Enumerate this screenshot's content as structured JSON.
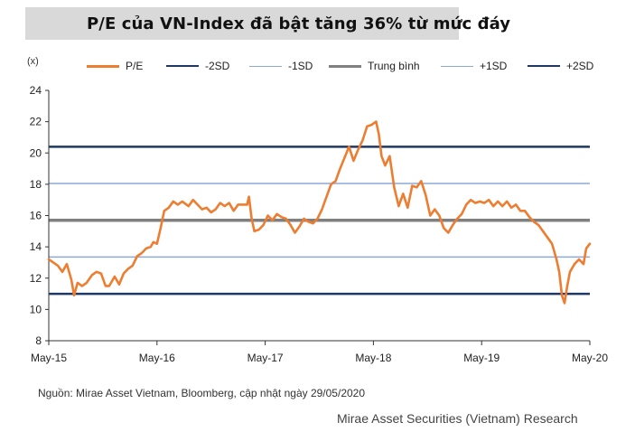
{
  "header": {
    "title": "P/E của VN-Index đã bật tăng 36% từ mức đáy",
    "unit": "(x)"
  },
  "legend": [
    {
      "label": "P/E",
      "color": "#ed7d31",
      "width": 3
    },
    {
      "label": "-2SD",
      "color": "#1f3864",
      "width": 2.5
    },
    {
      "label": "-1SD",
      "color": "#8ea9db",
      "width": 1.5
    },
    {
      "label": "Trung bình",
      "color": "#808080",
      "width": 3.5
    },
    {
      "label": "+1SD",
      "color": "#8ea9db",
      "width": 1.5
    },
    {
      "label": "+2SD",
      "color": "#1f3864",
      "width": 2.5
    }
  ],
  "footer": {
    "source": "Nguồn:  Mirae Asset Vietnam, Bloomberg, cập nhật ngày 29/05/2020",
    "brand": "Mirae Asset Securities (Vietnam) Research"
  },
  "chart_data": {
    "type": "line",
    "title": "P/E của VN-Index đã bật tăng 36% từ mức đáy",
    "ylabel": "(x)",
    "xlabel": "",
    "ylim": [
      8,
      24
    ],
    "y_ticks": [
      8,
      10,
      12,
      14,
      16,
      18,
      20,
      22,
      24
    ],
    "x_ticks": [
      "May-15",
      "May-16",
      "May-17",
      "May-18",
      "May-19",
      "May-20"
    ],
    "x_range_months": [
      0,
      60
    ],
    "grid": false,
    "legend_position": "top",
    "reference_lines": [
      {
        "name": "-2SD",
        "value": 11.0,
        "color": "#1f3864"
      },
      {
        "name": "-1SD",
        "value": 13.35,
        "color": "#8ea9db"
      },
      {
        "name": "Trung bình",
        "value": 15.7,
        "color": "#808080"
      },
      {
        "name": "+1SD",
        "value": 18.05,
        "color": "#8ea9db"
      },
      {
        "name": "+2SD",
        "value": 20.4,
        "color": "#1f3864"
      }
    ],
    "series": [
      {
        "name": "P/E",
        "color": "#ed7d31",
        "x_unit": "months since May-15",
        "points": [
          [
            0,
            13.2
          ],
          [
            0.5,
            13.0
          ],
          [
            1,
            12.8
          ],
          [
            1.5,
            12.4
          ],
          [
            2,
            12.9
          ],
          [
            2.5,
            11.9
          ],
          [
            2.8,
            10.9
          ],
          [
            3.2,
            11.7
          ],
          [
            3.7,
            11.5
          ],
          [
            4.2,
            11.7
          ],
          [
            4.8,
            12.2
          ],
          [
            5.3,
            12.4
          ],
          [
            5.8,
            12.3
          ],
          [
            6.3,
            11.5
          ],
          [
            6.7,
            11.5
          ],
          [
            7.3,
            12.1
          ],
          [
            7.8,
            11.6
          ],
          [
            8.3,
            12.3
          ],
          [
            8.8,
            12.6
          ],
          [
            9.3,
            12.8
          ],
          [
            9.8,
            13.4
          ],
          [
            10.3,
            13.6
          ],
          [
            10.8,
            13.9
          ],
          [
            11.3,
            14.0
          ],
          [
            11.6,
            14.3
          ],
          [
            12.0,
            14.2
          ],
          [
            12.4,
            15.2
          ],
          [
            12.8,
            16.3
          ],
          [
            13.3,
            16.5
          ],
          [
            13.8,
            16.9
          ],
          [
            14.3,
            16.7
          ],
          [
            14.8,
            16.9
          ],
          [
            15.5,
            16.6
          ],
          [
            16.0,
            17.0
          ],
          [
            16.5,
            16.7
          ],
          [
            17.0,
            16.4
          ],
          [
            17.5,
            16.5
          ],
          [
            18.0,
            16.2
          ],
          [
            18.5,
            16.4
          ],
          [
            19.0,
            16.8
          ],
          [
            19.5,
            16.6
          ],
          [
            20.0,
            16.8
          ],
          [
            20.5,
            16.3
          ],
          [
            21.0,
            16.7
          ],
          [
            21.5,
            16.7
          ],
          [
            22.0,
            16.7
          ],
          [
            22.2,
            17.2
          ],
          [
            22.5,
            15.8
          ],
          [
            22.8,
            15.0
          ],
          [
            23.3,
            15.1
          ],
          [
            23.8,
            15.4
          ],
          [
            24.3,
            16.0
          ],
          [
            24.8,
            15.7
          ],
          [
            25.3,
            16.1
          ],
          [
            25.8,
            15.9
          ],
          [
            26.3,
            15.8
          ],
          [
            26.8,
            15.4
          ],
          [
            27.3,
            14.9
          ],
          [
            27.8,
            15.3
          ],
          [
            28.3,
            15.8
          ],
          [
            28.8,
            15.6
          ],
          [
            29.3,
            15.5
          ],
          [
            29.8,
            15.8
          ],
          [
            30.3,
            16.4
          ],
          [
            30.8,
            17.2
          ],
          [
            31.3,
            18.0
          ],
          [
            31.8,
            18.2
          ],
          [
            32.3,
            19.0
          ],
          [
            32.8,
            19.7
          ],
          [
            33.3,
            20.4
          ],
          [
            33.8,
            19.5
          ],
          [
            34.3,
            20.2
          ],
          [
            34.8,
            20.8
          ],
          [
            35.3,
            21.7
          ],
          [
            35.8,
            21.8
          ],
          [
            36.3,
            22.0
          ],
          [
            36.6,
            21.2
          ],
          [
            36.9,
            19.8
          ],
          [
            37.3,
            19.2
          ],
          [
            37.8,
            19.8
          ],
          [
            38.3,
            17.8
          ],
          [
            38.8,
            16.6
          ],
          [
            39.3,
            17.4
          ],
          [
            39.8,
            16.5
          ],
          [
            40.3,
            17.9
          ],
          [
            40.8,
            17.8
          ],
          [
            41.3,
            18.2
          ],
          [
            41.8,
            17.3
          ],
          [
            42.3,
            16.0
          ],
          [
            42.8,
            16.4
          ],
          [
            43.3,
            16.0
          ],
          [
            43.8,
            15.2
          ],
          [
            44.3,
            14.9
          ],
          [
            44.8,
            15.4
          ],
          [
            45.3,
            15.8
          ],
          [
            45.8,
            16.1
          ],
          [
            46.3,
            16.7
          ],
          [
            46.8,
            17.0
          ],
          [
            47.3,
            16.8
          ],
          [
            47.8,
            16.9
          ],
          [
            48.3,
            16.8
          ],
          [
            48.8,
            17.0
          ],
          [
            49.3,
            16.6
          ],
          [
            49.8,
            16.9
          ],
          [
            50.3,
            16.6
          ],
          [
            50.8,
            16.9
          ],
          [
            51.3,
            16.5
          ],
          [
            51.8,
            16.7
          ],
          [
            52.3,
            16.3
          ],
          [
            52.8,
            16.3
          ],
          [
            53.3,
            15.9
          ],
          [
            53.8,
            15.6
          ],
          [
            54.3,
            15.4
          ],
          [
            54.8,
            15.0
          ],
          [
            55.3,
            14.6
          ],
          [
            55.8,
            14.2
          ],
          [
            56.3,
            13.2
          ],
          [
            56.6,
            12.4
          ],
          [
            56.9,
            10.9
          ],
          [
            57.2,
            10.4
          ],
          [
            57.5,
            11.5
          ],
          [
            57.8,
            12.4
          ],
          [
            58.3,
            12.9
          ],
          [
            58.8,
            13.2
          ],
          [
            59.3,
            12.9
          ],
          [
            59.6,
            13.9
          ],
          [
            60.0,
            14.2
          ]
        ]
      }
    ]
  }
}
